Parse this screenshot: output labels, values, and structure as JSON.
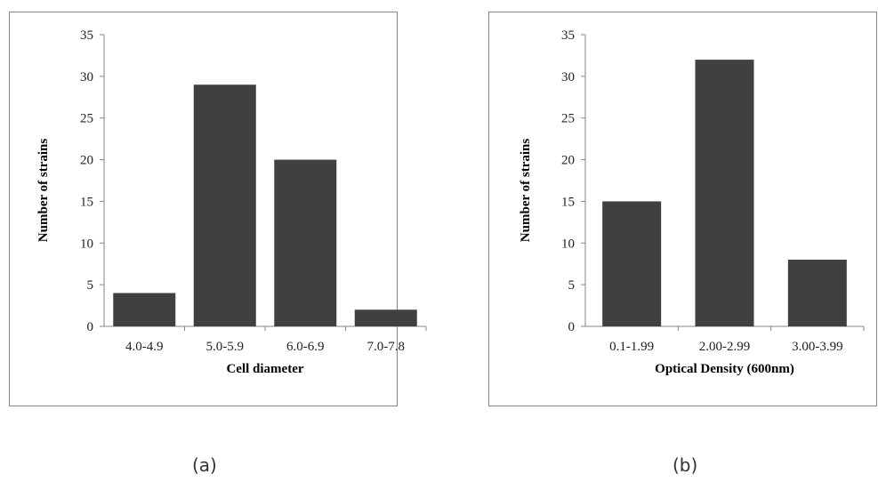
{
  "chart_data": [
    {
      "type": "bar",
      "categories": [
        "4.0-4.9",
        "5.0-5.9",
        "6.0-6.9",
        "7.0-7.8"
      ],
      "values": [
        4,
        29,
        20,
        2
      ],
      "xlabel": "Cell diameter",
      "ylabel": "Number of strains",
      "ylim": [
        0,
        35
      ],
      "yticks": [
        0,
        5,
        10,
        15,
        20,
        25,
        30,
        35
      ],
      "bar_color": "#404040",
      "grid": false
    },
    {
      "type": "bar",
      "categories": [
        "0.1-1.99",
        "2.00-2.99",
        "3.00-3.99"
      ],
      "values": [
        15,
        32,
        8
      ],
      "xlabel": "Optical Density (600nm)",
      "ylabel": "Number of strains",
      "ylim": [
        0,
        35
      ],
      "yticks": [
        0,
        5,
        10,
        15,
        20,
        25,
        30,
        35
      ],
      "bar_color": "#404040",
      "grid": false
    }
  ],
  "captions": [
    "(a)",
    "(b)"
  ]
}
